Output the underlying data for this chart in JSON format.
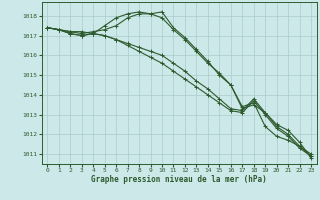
{
  "xlabel": "Graphe pression niveau de la mer (hPa)",
  "bg_color": "#cce8e8",
  "grid_color": "#aacccc",
  "line_color": "#2d5a2d",
  "ylim": [
    1010.5,
    1018.7
  ],
  "xlim": [
    -0.5,
    23.5
  ],
  "yticks": [
    1011,
    1012,
    1013,
    1014,
    1015,
    1016,
    1017,
    1018
  ],
  "xticks": [
    0,
    1,
    2,
    3,
    4,
    5,
    6,
    7,
    8,
    9,
    10,
    11,
    12,
    13,
    14,
    15,
    16,
    17,
    18,
    19,
    20,
    21,
    22,
    23
  ],
  "series": [
    [
      1017.4,
      1017.3,
      1017.2,
      1017.2,
      1017.1,
      1017.5,
      1017.9,
      1018.1,
      1018.2,
      1018.1,
      1017.9,
      1017.3,
      1016.8,
      1016.2,
      1015.6,
      1015.1,
      1014.5,
      1013.3,
      1013.5,
      1013.1,
      1012.5,
      1012.2,
      1011.6,
      1010.8
    ],
    [
      1017.4,
      1017.3,
      1017.2,
      1017.1,
      1017.2,
      1017.3,
      1017.5,
      1017.9,
      1018.1,
      1018.1,
      1018.2,
      1017.4,
      1016.9,
      1016.3,
      1015.7,
      1015.0,
      1014.5,
      1013.4,
      1013.6,
      1012.4,
      1011.9,
      1011.7,
      1011.4,
      1011.0
    ],
    [
      1017.4,
      1017.3,
      1017.1,
      1017.0,
      1017.1,
      1017.0,
      1016.8,
      1016.6,
      1016.4,
      1016.2,
      1016.0,
      1015.6,
      1015.2,
      1014.7,
      1014.3,
      1013.8,
      1013.3,
      1013.2,
      1013.8,
      1013.1,
      1012.4,
      1012.0,
      1011.4,
      1010.9
    ],
    [
      1017.4,
      1017.3,
      1017.1,
      1017.0,
      1017.1,
      1017.0,
      1016.8,
      1016.5,
      1016.2,
      1015.9,
      1015.6,
      1015.2,
      1014.8,
      1014.4,
      1014.0,
      1013.6,
      1013.2,
      1013.1,
      1013.7,
      1013.0,
      1012.3,
      1011.9,
      1011.3,
      1010.9
    ]
  ]
}
